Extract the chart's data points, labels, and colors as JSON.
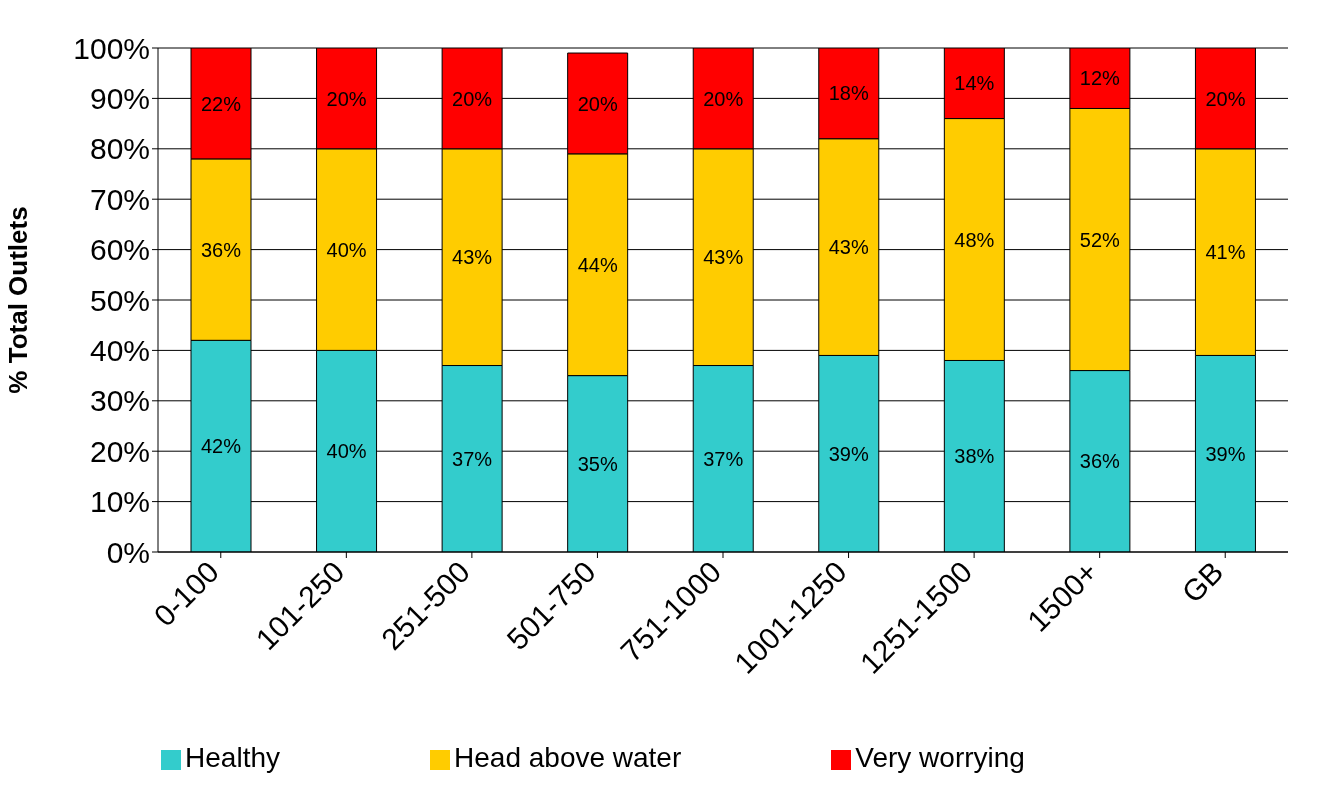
{
  "chart_data": {
    "type": "bar",
    "stacked": true,
    "ylabel": "% Total Outlets",
    "categories": [
      "0-100",
      "101-250",
      "251-500",
      "501-750",
      "751-1000",
      "1001-1250",
      "1251-1500",
      "1500+",
      "GB"
    ],
    "series": [
      {
        "name": "Healthy",
        "color": "#33cccc",
        "values": [
          42,
          40,
          37,
          35,
          37,
          39,
          38,
          36,
          39
        ],
        "value_labels": [
          "42%",
          "40%",
          "37%",
          "35%",
          "37%",
          "39%",
          "38%",
          "36%",
          "39%"
        ]
      },
      {
        "name": "Head above water",
        "color": "#ffcc00",
        "values": [
          36,
          40,
          43,
          44,
          43,
          43,
          48,
          52,
          41
        ],
        "value_labels": [
          "36%",
          "40%",
          "43%",
          "44%",
          "43%",
          "43%",
          "48%",
          "52%",
          "41%"
        ]
      },
      {
        "name": "Very worrying",
        "color": "#ff0000",
        "values": [
          22,
          20,
          20,
          20,
          20,
          18,
          14,
          12,
          20
        ],
        "value_labels": [
          "22%",
          "20%",
          "20%",
          "20%",
          "20%",
          "18%",
          "14%",
          "12%",
          "20%"
        ]
      }
    ],
    "ylim": [
      0,
      100
    ],
    "yticks": [
      {
        "value": 0,
        "label": "0%"
      },
      {
        "value": 10,
        "label": "10%"
      },
      {
        "value": 20,
        "label": "20%"
      },
      {
        "value": 30,
        "label": "30%"
      },
      {
        "value": 40,
        "label": "40%"
      },
      {
        "value": 50,
        "label": "50%"
      },
      {
        "value": 60,
        "label": "60%"
      },
      {
        "value": 70,
        "label": "70%"
      },
      {
        "value": 80,
        "label": "80%"
      },
      {
        "value": 90,
        "label": "90%"
      },
      {
        "value": 100,
        "label": "100%"
      }
    ],
    "grid": "y",
    "legend": "bottom"
  }
}
